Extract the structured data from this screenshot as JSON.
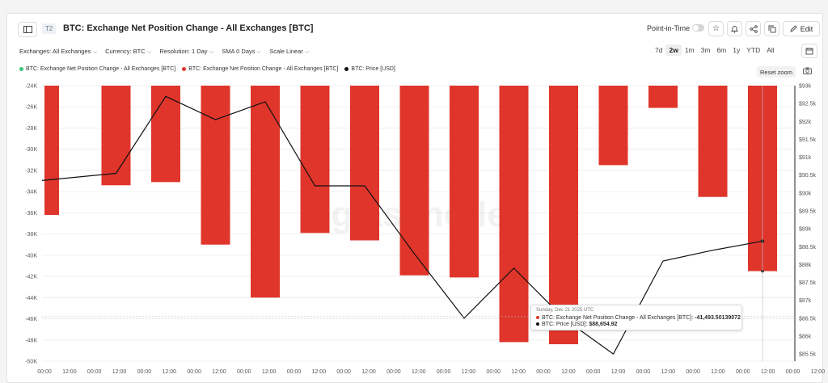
{
  "header": {
    "badge": "T2",
    "title": "BTC: Exchange Net Position Change - All Exchanges [BTC]",
    "point_in_time_label": "Point-in-Time",
    "edit_label": "Edit"
  },
  "filters": {
    "exchanges": "Exchanges: All Exchanges",
    "currency": "Currency: BTC",
    "resolution": "Resolution: 1 Day",
    "sma": "SMA 0 Days",
    "scale": "Scale Linear"
  },
  "ranges": [
    "7d",
    "2w",
    "1m",
    "3m",
    "6m",
    "1y",
    "YTD",
    "All"
  ],
  "active_range": "2w",
  "legend": [
    {
      "label": "BTC: Exchange Net Position Change - All Exchanges [BTC]",
      "color": "#3cc47c"
    },
    {
      "label": "BTC: Exchange Net Position Change - All Exchanges [BTC]",
      "color": "#e0352b"
    },
    {
      "label": "BTC: Price [USD]",
      "color": "#111111"
    }
  ],
  "reset_zoom_label": "Reset zoom",
  "watermark": "glassnode",
  "tooltip": {
    "date": "Sunday, Dec 21 2025 UTC",
    "row1_label": "BTC: Exchange Net Position Change - All Exchanges [BTC]:",
    "row1_value": "-41,493.50139072",
    "row2_label": "BTC: Price [USD]:",
    "row2_value": "$88,654.92"
  },
  "colors": {
    "bar": "#e0352b",
    "line": "#111111",
    "grid": "#ebebeb"
  },
  "chart_data": {
    "type": "bar",
    "title": "BTC: Exchange Net Position Change - All Exchanges [BTC]",
    "x_ticks": [
      "00:00",
      "12:00",
      "00:00",
      "12:00",
      "00:00",
      "12:00",
      "00:00",
      "12:00",
      "00:00",
      "12:00",
      "00:00",
      "12:00",
      "00:00",
      "12:00",
      "00:00",
      "12:00",
      "00:00",
      "12:00",
      "00:00",
      "12:00",
      "00:00",
      "12:00",
      "00:00",
      "12:00",
      "00:00",
      "12:00",
      "00:00",
      "12:00",
      "00:00",
      "12:00",
      "00:00",
      "12:00"
    ],
    "left_ticks": [
      "-24K",
      "-26K",
      "-28K",
      "-30K",
      "-32K",
      "-34K",
      "-36K",
      "-38K",
      "-40K",
      "-42K",
      "-44K",
      "-46K",
      "-48K",
      "-50K"
    ],
    "right_ticks": [
      "$93k",
      "$92.5k",
      "$92k",
      "$91.5k",
      "$91k",
      "$90.5k",
      "$90k",
      "$89.5k",
      "$89k",
      "$88.5k",
      "$88k",
      "$87.5k",
      "$87k",
      "$86.5k",
      "$86k",
      "$85.5k"
    ],
    "ylim_left": [
      -50000,
      -24000
    ],
    "ylim_right": [
      85300,
      93000
    ],
    "series": [
      {
        "name": "BTC: Exchange Net Position Change - All Exchanges [BTC]",
        "type": "bar",
        "axis": "left",
        "values": [
          -36200,
          -33400,
          -33100,
          -39000,
          -44000,
          -37900,
          -38600,
          -41900,
          -42100,
          -48200,
          -48400,
          -31500,
          -26100,
          -34500,
          -41500
        ]
      },
      {
        "name": "BTC: Price [USD]",
        "type": "line",
        "axis": "right",
        "values": [
          90350,
          90550,
          92700,
          92050,
          92550,
          90200,
          90200,
          88300,
          86500,
          87900,
          86500,
          85500,
          88100,
          88400,
          88654.92
        ]
      }
    ]
  }
}
